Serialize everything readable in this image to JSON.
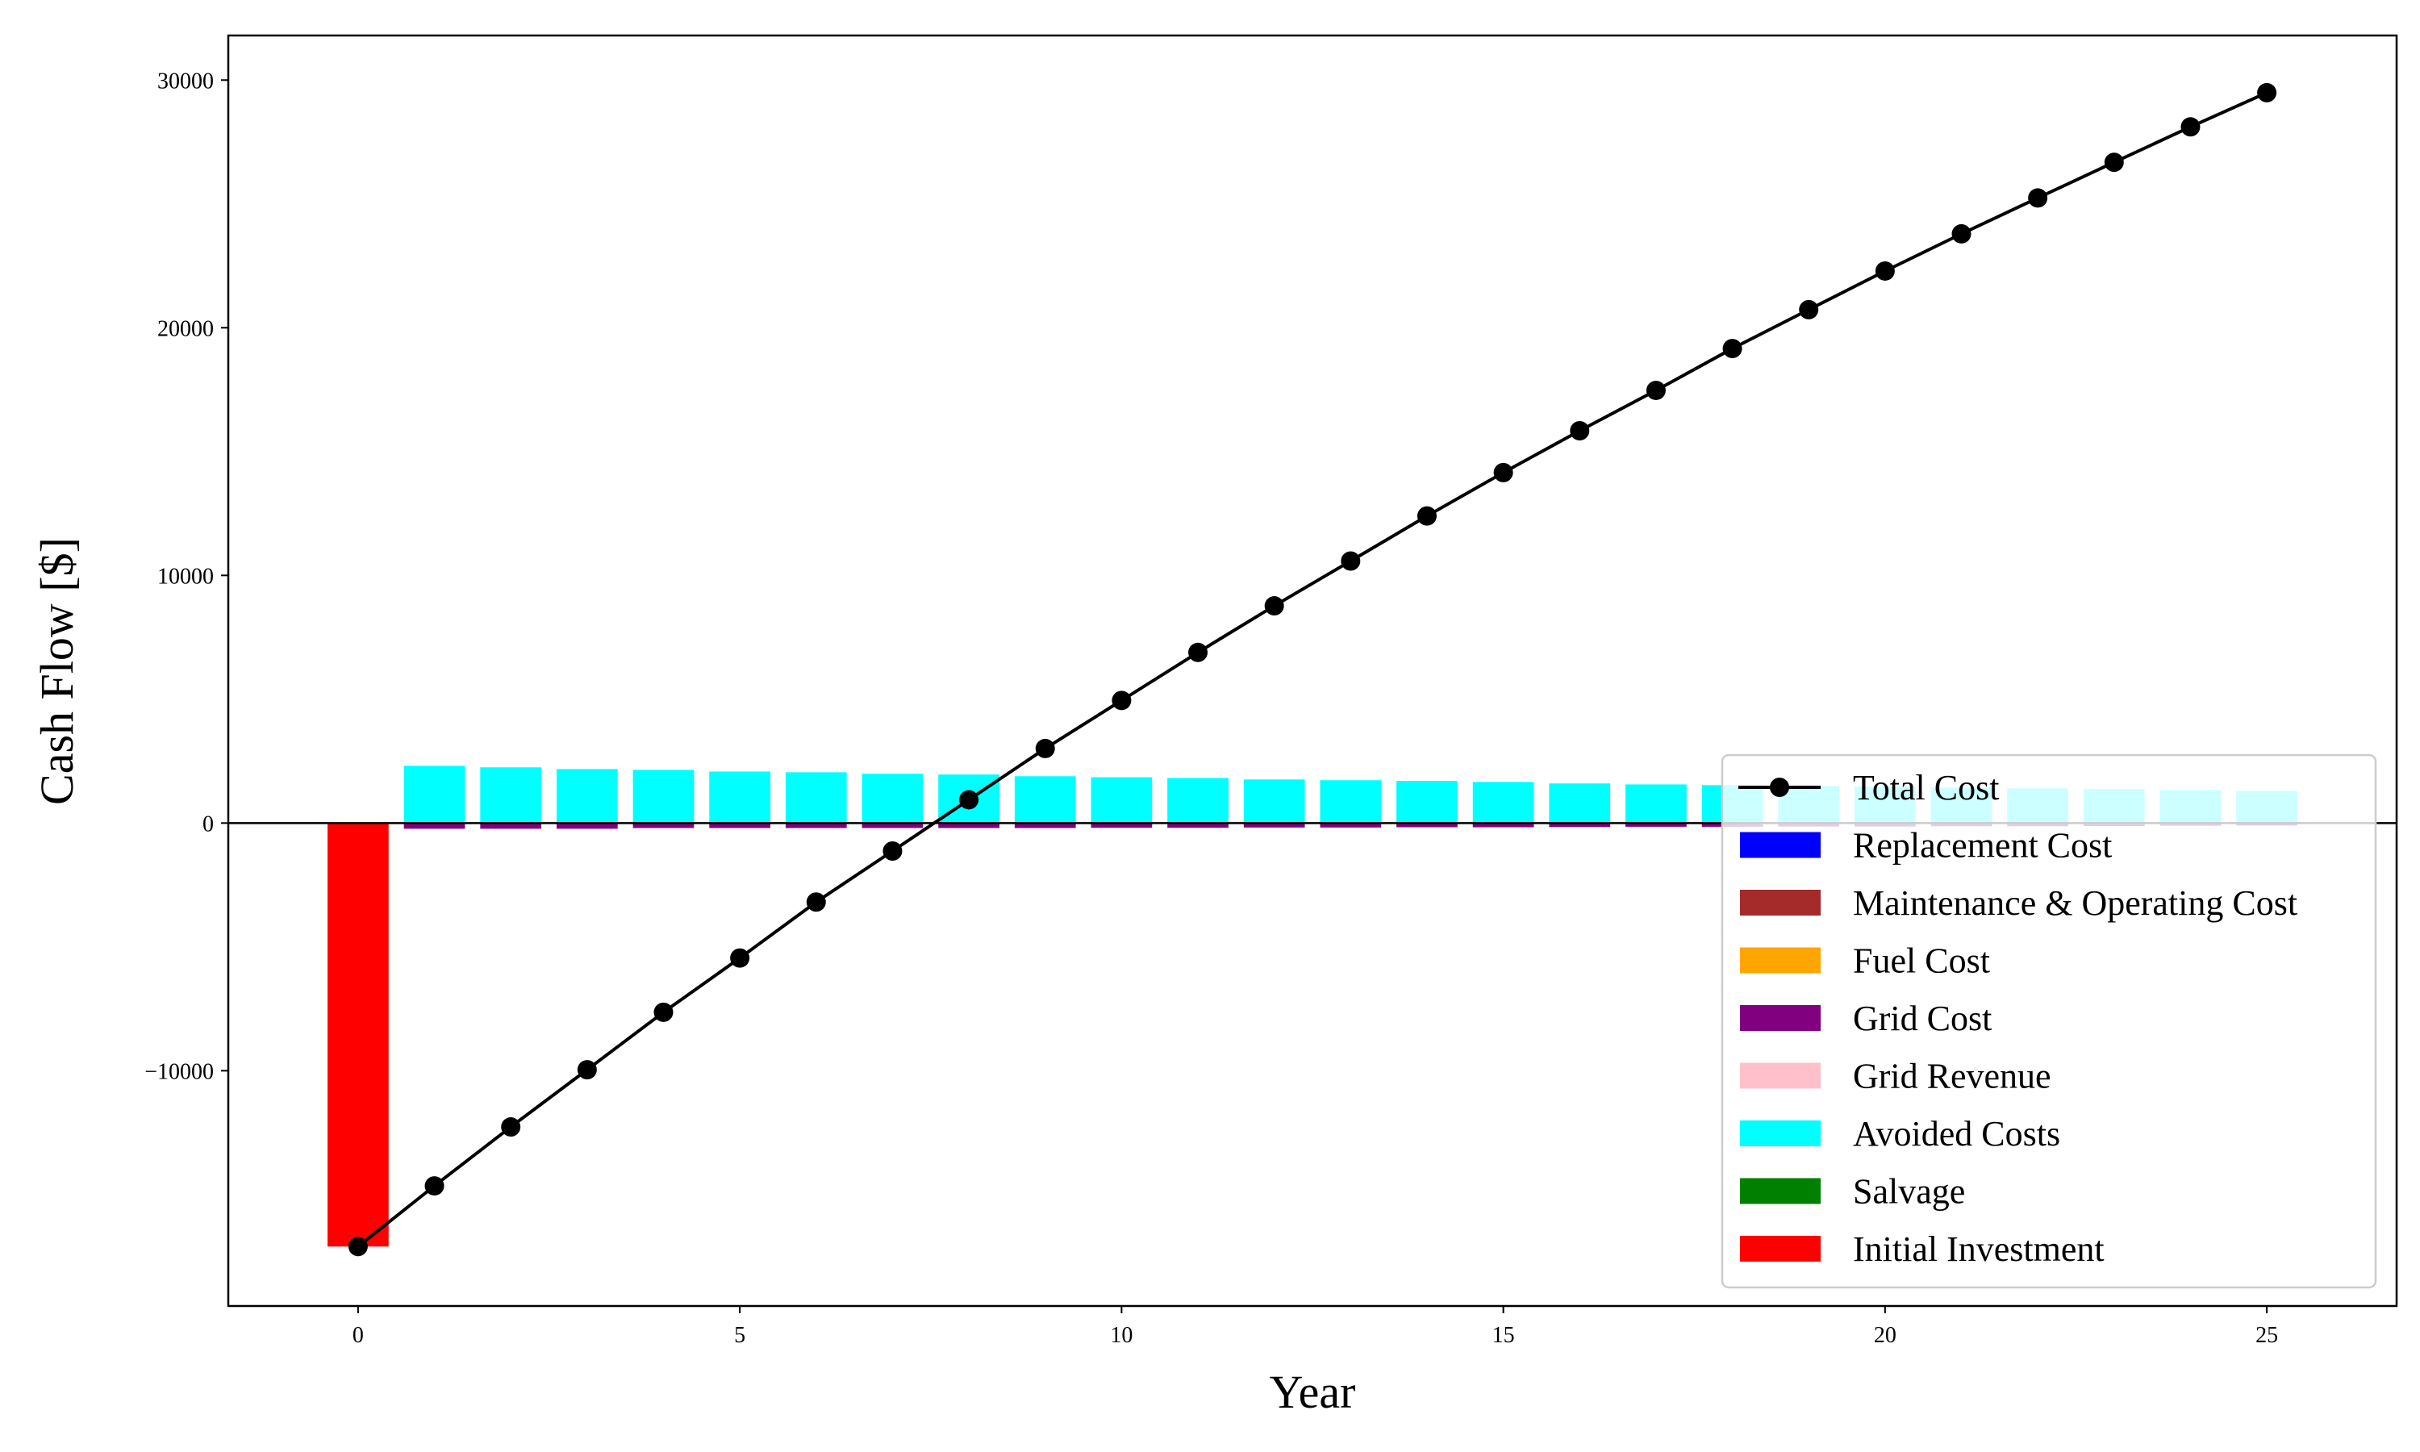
{
  "chart_data": {
    "type": "bar",
    "xlabel": "Year",
    "ylabel": "Cash Flow [$]",
    "xlim": [
      -1.7,
      26.7
    ],
    "ylim": [
      -19500,
      31800
    ],
    "xticks": [
      0,
      5,
      10,
      15,
      20,
      25
    ],
    "yticks": [
      -10000,
      0,
      10000,
      20000,
      30000
    ],
    "ytick_labels": [
      "−10000",
      "0",
      "10000",
      "20000",
      "30000"
    ],
    "legend_position": "lower-right",
    "x": [
      0,
      1,
      2,
      3,
      4,
      5,
      6,
      7,
      8,
      9,
      10,
      11,
      12,
      13,
      14,
      15,
      16,
      17,
      18,
      19,
      20,
      21,
      22,
      23,
      24,
      25
    ],
    "series": [
      {
        "name": "Total Cost",
        "type": "line",
        "color": "#000000",
        "values": [
          -17100,
          -14650,
          -12270,
          -9960,
          -7640,
          -5450,
          -3190,
          -1130,
          940,
          3010,
          4950,
          6890,
          8770,
          10580,
          12400,
          14150,
          15840,
          17470,
          19160,
          20730,
          22290,
          23790,
          25240,
          26680,
          28110,
          29490
        ]
      },
      {
        "name": "Replacement Cost",
        "type": "bar",
        "color": "#0000ff",
        "values": [
          0,
          0,
          0,
          0,
          0,
          0,
          0,
          0,
          0,
          0,
          0,
          0,
          0,
          0,
          0,
          0,
          0,
          0,
          0,
          0,
          0,
          0,
          0,
          0,
          0,
          0
        ]
      },
      {
        "name": "Maintenance & Operating Cost",
        "type": "bar",
        "color": "#a52a2a",
        "values": [
          0,
          0,
          0,
          0,
          0,
          0,
          0,
          0,
          0,
          0,
          0,
          0,
          0,
          0,
          0,
          0,
          0,
          0,
          0,
          0,
          0,
          0,
          0,
          0,
          0,
          0
        ]
      },
      {
        "name": "Fuel Cost",
        "type": "bar",
        "color": "#ffa500",
        "values": [
          0,
          0,
          0,
          0,
          0,
          0,
          0,
          0,
          0,
          0,
          0,
          0,
          0,
          0,
          0,
          0,
          0,
          0,
          0,
          0,
          0,
          0,
          0,
          0,
          0,
          0
        ]
      },
      {
        "name": "Grid Cost",
        "type": "bar",
        "color": "#800080",
        "values": [
          0,
          -230,
          -230,
          -230,
          -200,
          -200,
          -200,
          -200,
          -200,
          -200,
          -190,
          -190,
          -180,
          -180,
          -170,
          -170,
          -160,
          -150,
          -150,
          -140,
          -140,
          -130,
          -130,
          -120,
          -110,
          -100
        ]
      },
      {
        "name": "Grid Revenue",
        "type": "bar",
        "color": "#ffc0cb",
        "values": [
          0,
          0,
          0,
          0,
          0,
          0,
          0,
          0,
          0,
          0,
          0,
          0,
          0,
          0,
          0,
          0,
          0,
          0,
          0,
          0,
          0,
          0,
          0,
          0,
          0,
          0
        ]
      },
      {
        "name": "Avoided Costs",
        "type": "bar",
        "color": "#00ffff",
        "values": [
          0,
          2310,
          2250,
          2180,
          2150,
          2080,
          2050,
          1990,
          1960,
          1890,
          1850,
          1820,
          1760,
          1730,
          1700,
          1660,
          1600,
          1560,
          1530,
          1500,
          1470,
          1430,
          1400,
          1370,
          1340,
          1300
        ]
      },
      {
        "name": "Salvage",
        "type": "bar",
        "color": "#008000",
        "values": [
          0,
          0,
          0,
          0,
          0,
          0,
          0,
          0,
          0,
          0,
          0,
          0,
          0,
          0,
          0,
          0,
          0,
          0,
          0,
          0,
          0,
          0,
          0,
          0,
          0,
          0
        ]
      },
      {
        "name": "Initial Investment",
        "type": "bar",
        "color": "#ff0000",
        "values": [
          -17100,
          0,
          0,
          0,
          0,
          0,
          0,
          0,
          0,
          0,
          0,
          0,
          0,
          0,
          0,
          0,
          0,
          0,
          0,
          0,
          0,
          0,
          0,
          0,
          0,
          0
        ]
      }
    ]
  }
}
